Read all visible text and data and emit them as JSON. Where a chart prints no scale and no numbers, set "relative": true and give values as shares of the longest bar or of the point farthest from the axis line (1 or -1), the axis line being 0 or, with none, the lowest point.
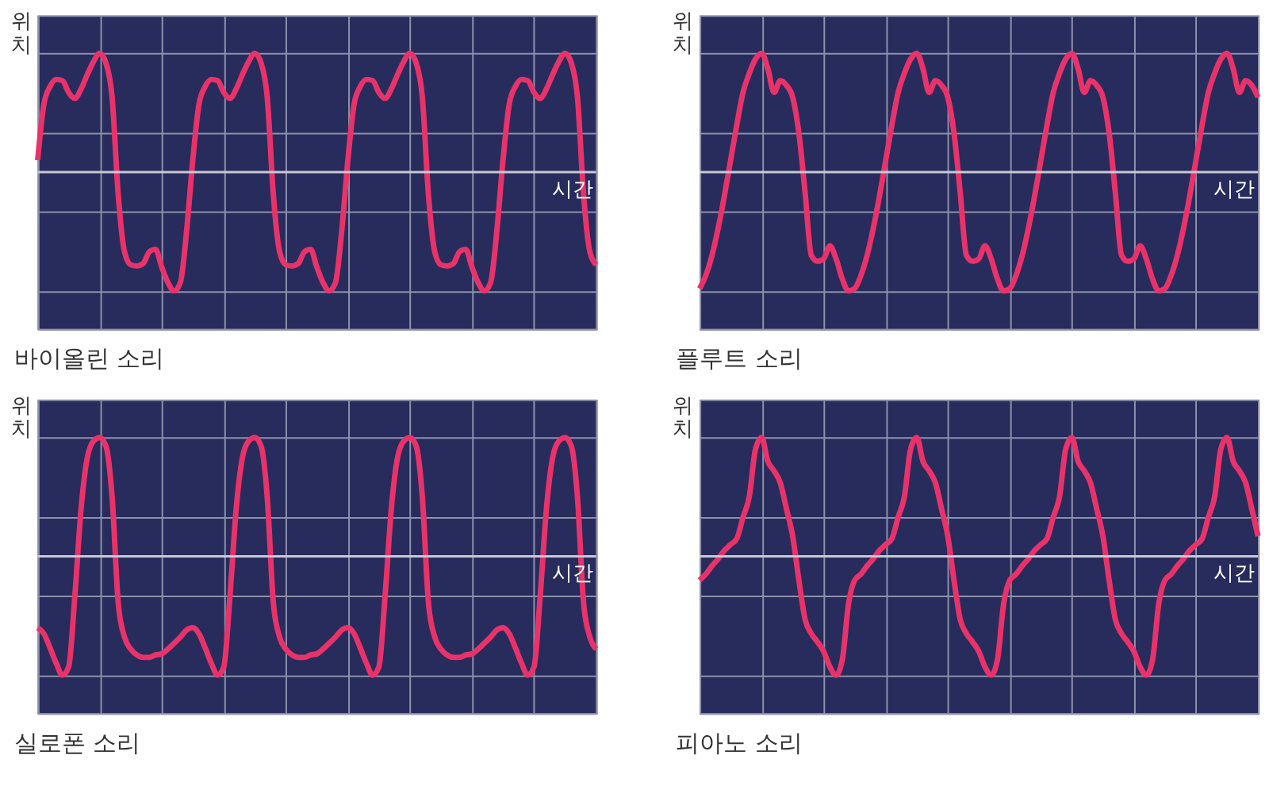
{
  "chart_data": [
    {
      "type": "line",
      "title": "바이올린 소리",
      "xlabel": "시간",
      "ylabel": "위치",
      "relative": true,
      "grid": true,
      "color": "#e8336a",
      "categories": [
        null,
        null,
        null,
        null,
        null,
        null,
        null,
        null,
        null,
        null,
        null,
        null,
        null,
        null,
        null,
        null,
        null,
        null,
        null,
        null,
        null,
        null,
        null,
        null,
        null,
        null,
        null,
        null,
        null,
        null,
        null,
        null,
        null,
        null,
        null,
        null,
        null,
        null,
        null,
        null,
        null,
        null,
        null,
        null,
        null,
        null,
        null,
        null,
        null,
        null,
        null,
        null,
        null,
        null,
        null,
        null,
        null,
        null,
        null,
        null,
        null,
        null,
        null,
        null,
        null,
        null,
        null,
        null,
        null,
        null,
        null,
        null,
        null,
        null,
        null,
        null,
        null,
        null,
        null,
        null,
        null,
        null,
        null,
        null,
        null,
        null,
        null,
        null,
        null,
        null,
        null
      ],
      "values": [
        0.1,
        0.57,
        0.72,
        0.78,
        0.77,
        0.67,
        0.62,
        0.7,
        0.82,
        0.93,
        1,
        0.92,
        0.63,
        -0.2,
        -0.67,
        -0.78,
        -0.79,
        -0.77,
        -0.67,
        -0.65,
        -0.8,
        -0.93,
        -1,
        -0.93,
        -0.5,
        0.1,
        0.57,
        0.72,
        0.78,
        0.77,
        0.67,
        0.62,
        0.7,
        0.82,
        0.93,
        1,
        0.92,
        0.63,
        -0.2,
        -0.67,
        -0.78,
        -0.79,
        -0.77,
        -0.67,
        -0.65,
        -0.8,
        -0.93,
        -1,
        -0.93,
        -0.5,
        0.1,
        0.57,
        0.72,
        0.78,
        0.77,
        0.67,
        0.62,
        0.7,
        0.82,
        0.93,
        1,
        0.92,
        0.63,
        -0.2,
        -0.67,
        -0.78,
        -0.79,
        -0.77,
        -0.67,
        -0.65,
        -0.8,
        -0.93,
        -1,
        -0.93,
        -0.5,
        0.1,
        0.57,
        0.72,
        0.78,
        0.77,
        0.67,
        0.62,
        0.7,
        0.82,
        0.93,
        1,
        0.92,
        0.63,
        -0.2,
        -0.67,
        -0.78
      ]
    },
    {
      "type": "line",
      "title": "플루트 소리",
      "xlabel": "시간",
      "ylabel": "위치",
      "relative": true,
      "grid": true,
      "color": "#e8336a",
      "categories": [
        null,
        null,
        null,
        null,
        null,
        null,
        null,
        null,
        null,
        null,
        null,
        null,
        null,
        null,
        null,
        null,
        null,
        null,
        null,
        null,
        null,
        null,
        null,
        null,
        null,
        null,
        null,
        null,
        null,
        null,
        null,
        null,
        null,
        null,
        null,
        null,
        null,
        null,
        null,
        null,
        null,
        null,
        null,
        null,
        null,
        null,
        null,
        null,
        null,
        null,
        null,
        null,
        null,
        null,
        null,
        null,
        null,
        null,
        null,
        null,
        null,
        null,
        null,
        null,
        null,
        null,
        null,
        null,
        null,
        null,
        null,
        null,
        null,
        null,
        null,
        null,
        null,
        null,
        null,
        null,
        null,
        null,
        null,
        null,
        null,
        null,
        null,
        null,
        null,
        null,
        null
      ],
      "values": [
        -0.98,
        -0.87,
        -0.7,
        -0.47,
        -0.2,
        0.1,
        0.4,
        0.67,
        0.83,
        0.95,
        1,
        0.87,
        0.67,
        0.77,
        0.73,
        0.63,
        0.33,
        -0.17,
        -0.7,
        -0.75,
        -0.73,
        -0.62,
        -0.73,
        -0.9,
        -1,
        -0.98,
        -0.87,
        -0.7,
        -0.47,
        -0.2,
        0.1,
        0.4,
        0.67,
        0.83,
        0.95,
        1,
        0.87,
        0.67,
        0.77,
        0.73,
        0.63,
        0.33,
        -0.17,
        -0.7,
        -0.75,
        -0.73,
        -0.62,
        -0.73,
        -0.9,
        -1,
        -0.98,
        -0.87,
        -0.7,
        -0.47,
        -0.2,
        0.1,
        0.4,
        0.67,
        0.83,
        0.95,
        1,
        0.87,
        0.67,
        0.77,
        0.73,
        0.63,
        0.33,
        -0.17,
        -0.7,
        -0.75,
        -0.73,
        -0.62,
        -0.73,
        -0.9,
        -1,
        -0.98,
        -0.87,
        -0.7,
        -0.47,
        -0.2,
        0.1,
        0.4,
        0.67,
        0.83,
        0.95,
        1,
        0.87,
        0.67,
        0.77,
        0.73,
        0.63
      ]
    },
    {
      "type": "line",
      "title": "실로폰 소리",
      "xlabel": "시간",
      "ylabel": "위치",
      "relative": true,
      "grid": true,
      "color": "#e8336a",
      "categories": [
        null,
        null,
        null,
        null,
        null,
        null,
        null,
        null,
        null,
        null,
        null,
        null,
        null,
        null,
        null,
        null,
        null,
        null,
        null,
        null,
        null,
        null,
        null,
        null,
        null,
        null,
        null,
        null,
        null,
        null,
        null,
        null,
        null,
        null,
        null,
        null,
        null,
        null,
        null,
        null,
        null,
        null,
        null,
        null,
        null,
        null,
        null,
        null,
        null,
        null,
        null,
        null,
        null,
        null,
        null,
        null,
        null,
        null,
        null,
        null,
        null,
        null,
        null,
        null,
        null,
        null,
        null,
        null,
        null,
        null,
        null,
        null,
        null,
        null,
        null,
        null,
        null,
        null,
        null,
        null,
        null,
        null,
        null,
        null,
        null,
        null,
        null,
        null,
        null,
        null,
        null
      ],
      "values": [
        -0.6,
        -0.65,
        -0.77,
        -0.9,
        -1,
        -0.93,
        -0.33,
        0.4,
        0.83,
        0.97,
        1,
        0.93,
        0.5,
        -0.4,
        -0.68,
        -0.78,
        -0.83,
        -0.85,
        -0.85,
        -0.83,
        -0.82,
        -0.78,
        -0.73,
        -0.68,
        -0.62,
        -0.6,
        -0.65,
        -0.77,
        -0.9,
        -1,
        -0.93,
        -0.33,
        0.4,
        0.83,
        0.97,
        1,
        0.93,
        0.5,
        -0.4,
        -0.68,
        -0.78,
        -0.83,
        -0.85,
        -0.85,
        -0.83,
        -0.82,
        -0.78,
        -0.73,
        -0.68,
        -0.62,
        -0.6,
        -0.65,
        -0.77,
        -0.9,
        -1,
        -0.93,
        -0.33,
        0.4,
        0.83,
        0.97,
        1,
        0.93,
        0.5,
        -0.4,
        -0.68,
        -0.78,
        -0.83,
        -0.85,
        -0.85,
        -0.83,
        -0.82,
        -0.78,
        -0.73,
        -0.68,
        -0.62,
        -0.6,
        -0.65,
        -0.77,
        -0.9,
        -1,
        -0.93,
        -0.33,
        0.4,
        0.83,
        0.97,
        1,
        0.93,
        0.5,
        -0.4,
        -0.68,
        -0.78
      ]
    },
    {
      "type": "line",
      "title": "피아노 소리",
      "xlabel": "시간",
      "ylabel": "위치",
      "relative": true,
      "grid": true,
      "color": "#e8336a",
      "categories": [
        null,
        null,
        null,
        null,
        null,
        null,
        null,
        null,
        null,
        null,
        null,
        null,
        null,
        null,
        null,
        null,
        null,
        null,
        null,
        null,
        null,
        null,
        null,
        null,
        null,
        null,
        null,
        null,
        null,
        null,
        null,
        null,
        null,
        null,
        null,
        null,
        null,
        null,
        null,
        null,
        null,
        null,
        null,
        null,
        null,
        null,
        null,
        null,
        null,
        null,
        null,
        null,
        null,
        null,
        null,
        null,
        null,
        null,
        null,
        null,
        null,
        null,
        null,
        null,
        null,
        null,
        null,
        null,
        null,
        null,
        null,
        null,
        null,
        null,
        null,
        null,
        null,
        null,
        null,
        null,
        null,
        null,
        null,
        null,
        null,
        null,
        null,
        null,
        null,
        null,
        null
      ],
      "values": [
        -0.2,
        -0.15,
        -0.08,
        -0.02,
        0.05,
        0.1,
        0.15,
        0.33,
        0.5,
        0.9,
        1,
        0.8,
        0.72,
        0.62,
        0.4,
        0.17,
        -0.2,
        -0.53,
        -0.65,
        -0.72,
        -0.8,
        -0.93,
        -1,
        -0.87,
        -0.4,
        -0.2,
        -0.15,
        -0.08,
        -0.02,
        0.05,
        0.1,
        0.15,
        0.33,
        0.5,
        0.9,
        1,
        0.8,
        0.72,
        0.62,
        0.4,
        0.17,
        -0.2,
        -0.53,
        -0.65,
        -0.72,
        -0.8,
        -0.93,
        -1,
        -0.87,
        -0.4,
        -0.2,
        -0.15,
        -0.08,
        -0.02,
        0.05,
        0.1,
        0.15,
        0.33,
        0.5,
        0.9,
        1,
        0.8,
        0.72,
        0.62,
        0.4,
        0.17,
        -0.2,
        -0.53,
        -0.65,
        -0.72,
        -0.8,
        -0.93,
        -1,
        -0.87,
        -0.4,
        -0.2,
        -0.15,
        -0.08,
        -0.02,
        0.05,
        0.1,
        0.15,
        0.33,
        0.5,
        0.9,
        1,
        0.8,
        0.72,
        0.62,
        0.4,
        0.17
      ]
    }
  ]
}
